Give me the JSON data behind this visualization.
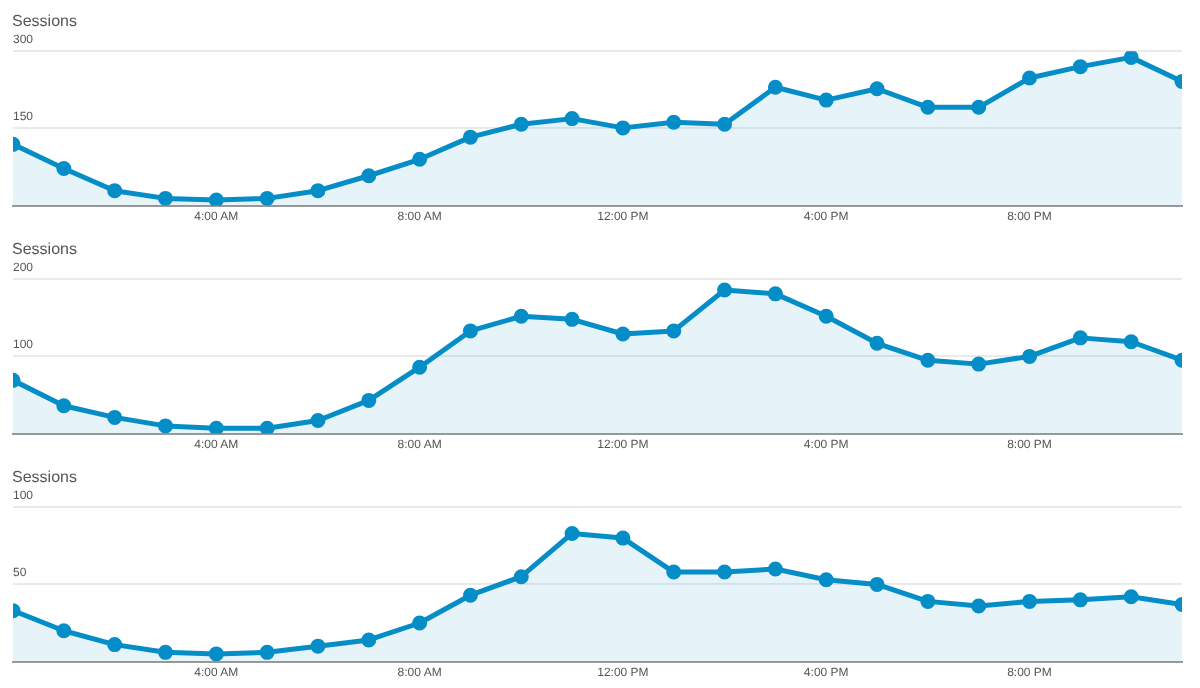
{
  "chart_data": [
    {
      "type": "area",
      "ylabel": "Sessions",
      "x": [
        0,
        1,
        2,
        3,
        4,
        5,
        6,
        7,
        8,
        9,
        10,
        11,
        12,
        13,
        14,
        15,
        16,
        17,
        18,
        19,
        20,
        21,
        22,
        23
      ],
      "xlim": [
        0,
        23
      ],
      "xticks": [
        {
          "value": 4,
          "label": "4:00 AM"
        },
        {
          "value": 8,
          "label": "8:00 AM"
        },
        {
          "value": 12,
          "label": "12:00 PM"
        },
        {
          "value": 16,
          "label": "4:00 PM"
        },
        {
          "value": 20,
          "label": "8:00 PM"
        }
      ],
      "ylim": [
        0,
        300
      ],
      "yticks": [
        150,
        300
      ],
      "grid": "y",
      "marker": "circle",
      "series": [
        {
          "color": "#058dc7",
          "values": [
            119,
            72,
            29,
            14,
            11,
            14,
            29,
            58,
            90,
            133,
            158,
            169,
            151,
            162,
            158,
            230,
            205,
            227,
            191,
            191,
            248,
            270,
            288,
            241
          ]
        }
      ]
    },
    {
      "type": "area",
      "ylabel": "Sessions",
      "x": [
        0,
        1,
        2,
        3,
        4,
        5,
        6,
        7,
        8,
        9,
        10,
        11,
        12,
        13,
        14,
        15,
        16,
        17,
        18,
        19,
        20,
        21,
        22,
        23
      ],
      "xlim": [
        0,
        23
      ],
      "xticks": [
        {
          "value": 4,
          "label": "4:00 AM"
        },
        {
          "value": 8,
          "label": "8:00 AM"
        },
        {
          "value": 12,
          "label": "12:00 PM"
        },
        {
          "value": 16,
          "label": "4:00 PM"
        },
        {
          "value": 20,
          "label": "8:00 PM"
        }
      ],
      "ylim": [
        0,
        200
      ],
      "yticks": [
        100,
        200
      ],
      "grid": "y",
      "marker": "circle",
      "series": [
        {
          "color": "#058dc7",
          "values": [
            69,
            36,
            21,
            10,
            7,
            7,
            17,
            43,
            86,
            133,
            152,
            148,
            129,
            133,
            186,
            181,
            152,
            117,
            95,
            90,
            100,
            124,
            119,
            95
          ]
        }
      ]
    },
    {
      "type": "area",
      "ylabel": "Sessions",
      "x": [
        0,
        1,
        2,
        3,
        4,
        5,
        6,
        7,
        8,
        9,
        10,
        11,
        12,
        13,
        14,
        15,
        16,
        17,
        18,
        19,
        20,
        21,
        22,
        23
      ],
      "xlim": [
        0,
        23
      ],
      "xticks": [
        {
          "value": 4,
          "label": "4:00 AM"
        },
        {
          "value": 8,
          "label": "8:00 AM"
        },
        {
          "value": 12,
          "label": "12:00 PM"
        },
        {
          "value": 16,
          "label": "4:00 PM"
        },
        {
          "value": 20,
          "label": "8:00 PM"
        }
      ],
      "ylim": [
        0,
        100
      ],
      "yticks": [
        50,
        100
      ],
      "grid": "y",
      "marker": "circle",
      "series": [
        {
          "color": "#058dc7",
          "values": [
            33,
            20,
            11,
            6,
            5,
            6,
            10,
            14,
            25,
            43,
            55,
            83,
            80,
            58,
            58,
            60,
            53,
            50,
            39,
            36,
            39,
            40,
            42,
            37
          ]
        }
      ]
    }
  ]
}
